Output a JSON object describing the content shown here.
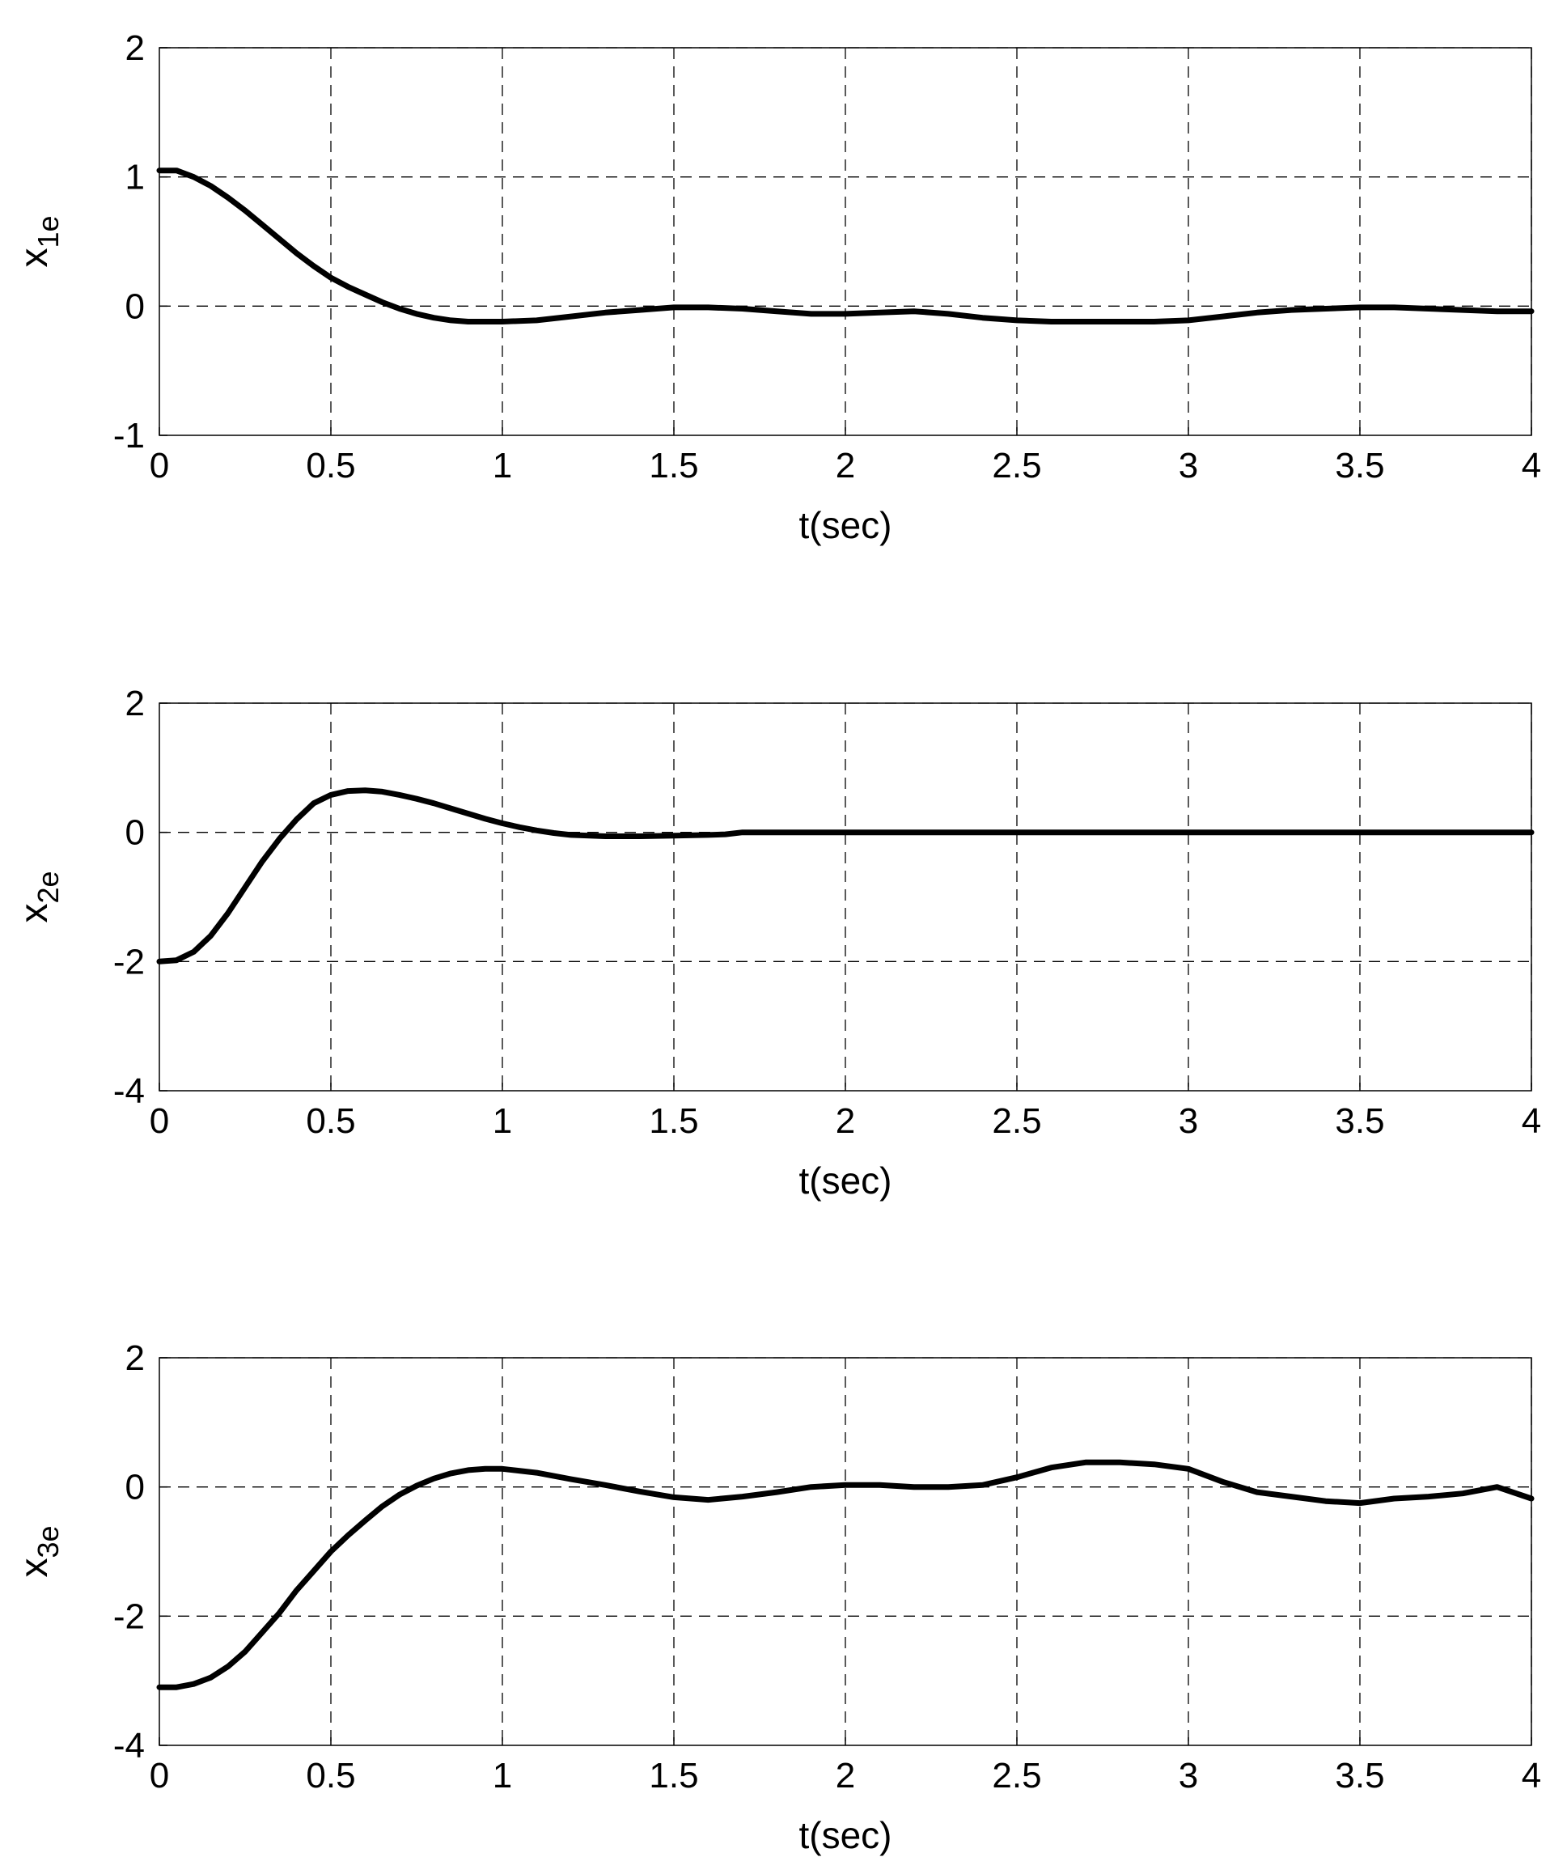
{
  "chart_data": [
    {
      "type": "line",
      "xlabel": "t(sec)",
      "ylabel": {
        "base": "x",
        "sub": "1e"
      },
      "xlim": [
        0,
        4
      ],
      "ylim": [
        -1,
        2
      ],
      "xticks": [
        0,
        0.5,
        1,
        1.5,
        2,
        2.5,
        3,
        3.5,
        4
      ],
      "xtick_labels": [
        "0",
        "0.5",
        "1",
        "1.5",
        "2",
        "2.5",
        "3",
        "3.5",
        "4"
      ],
      "yticks": [
        -1,
        0,
        1,
        2
      ],
      "ytick_labels": [
        "-1",
        "0",
        "1",
        "2"
      ],
      "grid": true,
      "line_color": "#000000",
      "series": [
        {
          "x": [
            0,
            0.05,
            0.1,
            0.15,
            0.2,
            0.25,
            0.3,
            0.35,
            0.4,
            0.45,
            0.5,
            0.55,
            0.6,
            0.65,
            0.7,
            0.75,
            0.8,
            0.85,
            0.9,
            1.0,
            1.1,
            1.2,
            1.3,
            1.4,
            1.5,
            1.6,
            1.7,
            1.8,
            1.9,
            2.0,
            2.1,
            2.2,
            2.3,
            2.4,
            2.5,
            2.6,
            2.7,
            2.8,
            2.9,
            3.0,
            3.1,
            3.2,
            3.3,
            3.4,
            3.5,
            3.6,
            3.7,
            3.8,
            3.9,
            4.0
          ],
          "y": [
            1.05,
            1.05,
            1.0,
            0.93,
            0.84,
            0.74,
            0.63,
            0.52,
            0.41,
            0.31,
            0.22,
            0.15,
            0.09,
            0.03,
            -0.02,
            -0.06,
            -0.09,
            -0.11,
            -0.12,
            -0.12,
            -0.11,
            -0.08,
            -0.05,
            -0.03,
            -0.01,
            -0.01,
            -0.02,
            -0.04,
            -0.06,
            -0.06,
            -0.05,
            -0.04,
            -0.06,
            -0.09,
            -0.11,
            -0.12,
            -0.12,
            -0.12,
            -0.12,
            -0.11,
            -0.08,
            -0.05,
            -0.03,
            -0.02,
            -0.01,
            -0.01,
            -0.02,
            -0.03,
            -0.04,
            -0.04
          ]
        }
      ]
    },
    {
      "type": "line",
      "xlabel": "t(sec)",
      "ylabel": {
        "base": "x",
        "sub": "2e"
      },
      "xlim": [
        0,
        4
      ],
      "ylim": [
        -4,
        2
      ],
      "xticks": [
        0,
        0.5,
        1,
        1.5,
        2,
        2.5,
        3,
        3.5,
        4
      ],
      "xtick_labels": [
        "0",
        "0.5",
        "1",
        "1.5",
        "2",
        "2.5",
        "3",
        "3.5",
        "4"
      ],
      "yticks": [
        -4,
        -2,
        0,
        2
      ],
      "ytick_labels": [
        "-4",
        "-2",
        "0",
        "2"
      ],
      "grid": true,
      "line_color": "#000000",
      "series": [
        {
          "x": [
            0,
            0.05,
            0.1,
            0.15,
            0.2,
            0.25,
            0.3,
            0.35,
            0.4,
            0.45,
            0.5,
            0.55,
            0.6,
            0.65,
            0.7,
            0.75,
            0.8,
            0.85,
            0.9,
            0.95,
            1.0,
            1.05,
            1.1,
            1.15,
            1.2,
            1.3,
            1.4,
            1.5,
            1.6,
            1.65,
            1.7,
            2.0,
            2.5,
            3.0,
            3.5,
            4.0
          ],
          "y": [
            -2.0,
            -1.98,
            -1.85,
            -1.6,
            -1.25,
            -0.85,
            -0.45,
            -0.1,
            0.2,
            0.45,
            0.58,
            0.64,
            0.65,
            0.63,
            0.58,
            0.52,
            0.45,
            0.37,
            0.29,
            0.21,
            0.14,
            0.08,
            0.03,
            -0.01,
            -0.04,
            -0.06,
            -0.06,
            -0.05,
            -0.04,
            -0.03,
            0.0,
            0.0,
            0.0,
            0.0,
            0.0,
            0.0
          ]
        }
      ]
    },
    {
      "type": "line",
      "xlabel": "t(sec)",
      "ylabel": {
        "base": "x",
        "sub": "3e"
      },
      "xlim": [
        0,
        4
      ],
      "ylim": [
        -4,
        2
      ],
      "xticks": [
        0,
        0.5,
        1,
        1.5,
        2,
        2.5,
        3,
        3.5,
        4
      ],
      "xtick_labels": [
        "0",
        "0.5",
        "1",
        "1.5",
        "2",
        "2.5",
        "3",
        "3.5",
        "4"
      ],
      "yticks": [
        -4,
        -2,
        0,
        2
      ],
      "ytick_labels": [
        "-4",
        "-2",
        "0",
        "2"
      ],
      "grid": true,
      "line_color": "#000000",
      "series": [
        {
          "x": [
            0,
            0.05,
            0.1,
            0.15,
            0.2,
            0.25,
            0.3,
            0.35,
            0.4,
            0.45,
            0.5,
            0.55,
            0.6,
            0.65,
            0.7,
            0.75,
            0.8,
            0.85,
            0.9,
            0.95,
            1.0,
            1.1,
            1.2,
            1.3,
            1.4,
            1.5,
            1.6,
            1.7,
            1.8,
            1.9,
            2.0,
            2.1,
            2.2,
            2.3,
            2.4,
            2.5,
            2.6,
            2.7,
            2.8,
            2.9,
            3.0,
            3.1,
            3.2,
            3.3,
            3.4,
            3.5,
            3.6,
            3.7,
            3.8,
            3.9,
            4.0
          ],
          "y": [
            -3.1,
            -3.1,
            -3.05,
            -2.95,
            -2.78,
            -2.55,
            -2.25,
            -1.95,
            -1.6,
            -1.3,
            -1.0,
            -0.75,
            -0.52,
            -0.3,
            -0.12,
            0.02,
            0.13,
            0.21,
            0.26,
            0.28,
            0.28,
            0.22,
            0.12,
            0.03,
            -0.07,
            -0.16,
            -0.2,
            -0.15,
            -0.08,
            0.0,
            0.03,
            0.03,
            0.0,
            0.0,
            0.03,
            0.15,
            0.3,
            0.38,
            0.38,
            0.35,
            0.28,
            0.08,
            -0.08,
            -0.15,
            -0.22,
            -0.25,
            -0.18,
            -0.15,
            -0.1,
            0.0,
            -0.18
          ]
        }
      ]
    }
  ]
}
